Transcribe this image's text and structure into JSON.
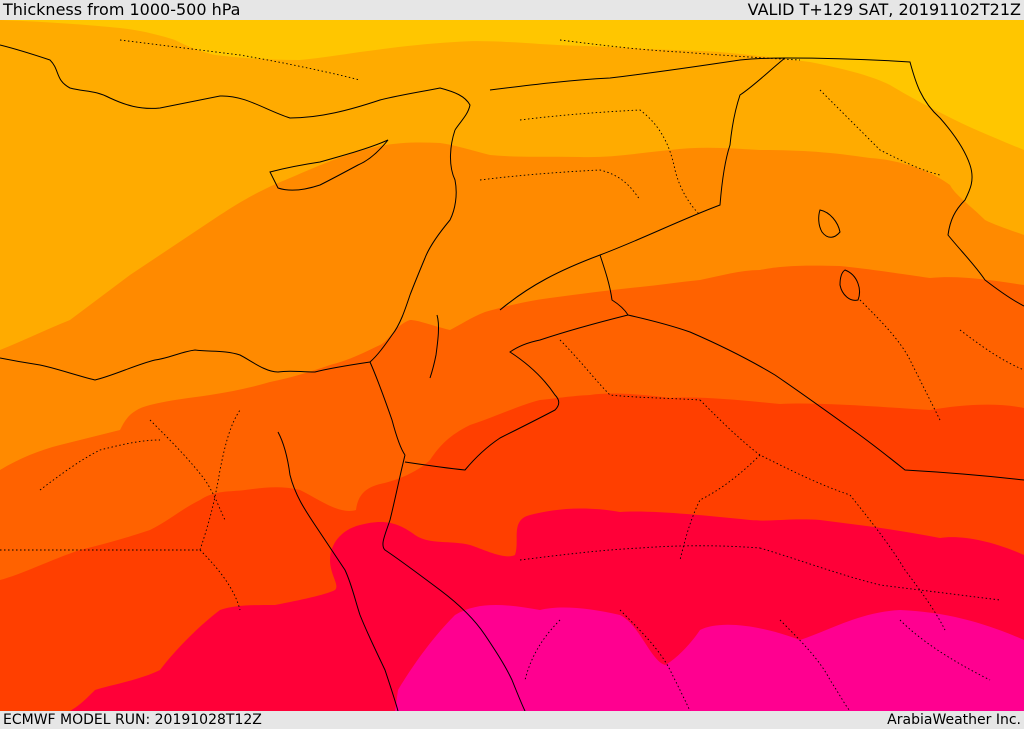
{
  "header": {
    "title": "Thickness from 1000-500 hPa",
    "valid": "VALID T+129 SAT, 20191102T21Z"
  },
  "footer": {
    "model_run": "ECMWF MODEL RUN: 20191028T12Z",
    "credit": "ArabiaWeather Inc."
  },
  "colors": {
    "band_1": "#ffc600",
    "band_2": "#ffab00",
    "band_3": "#ff8a00",
    "band_4": "#ff6200",
    "band_5": "#ff3f00",
    "band_6": "#ff0038",
    "band_7": "#ff0090",
    "coast": "#000000",
    "border": "#000000"
  }
}
